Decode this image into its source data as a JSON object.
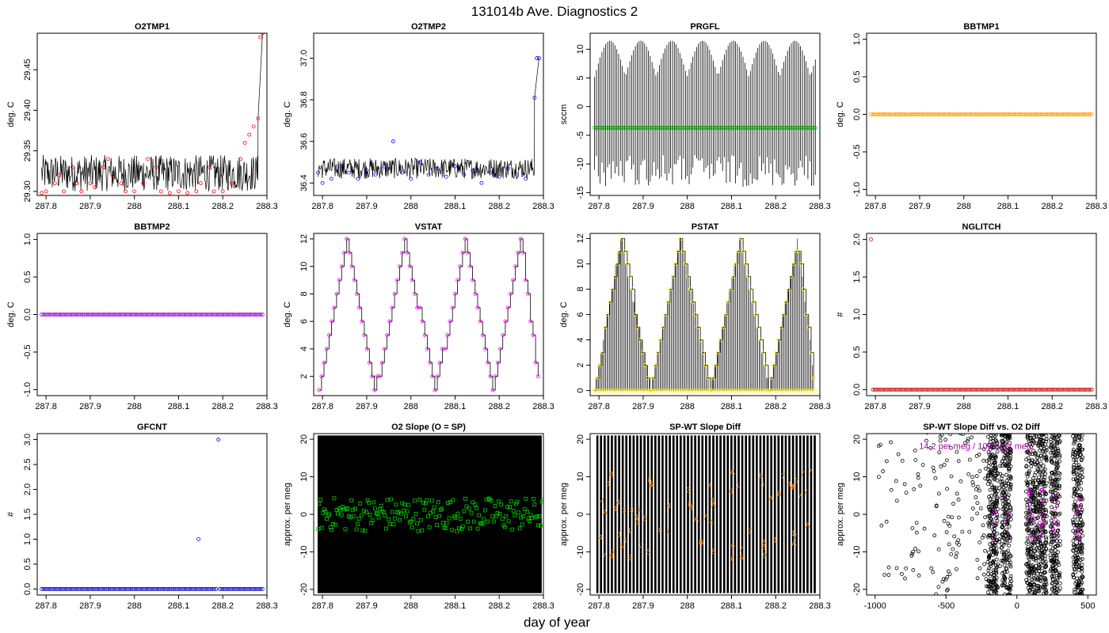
{
  "title": "131014b   Ave. Diagnostics 2",
  "xlabel_bottom": "day of year",
  "chart_data": [
    {
      "id": "o2tmp1",
      "type": "line",
      "title": "O2TMP1",
      "ylabel": "deg. C",
      "xlim": [
        287.78,
        288.3
      ],
      "ylim": [
        29.295,
        29.495
      ],
      "xticks": [
        287.8,
        287.9,
        288.0,
        288.1,
        288.2,
        288.3
      ],
      "yticks": [
        29.3,
        29.35,
        29.4,
        29.45
      ],
      "ytick_labels": [
        "29.30",
        "29.35",
        "29.40",
        "29.45"
      ],
      "marker_color": "#ff0000",
      "line_color": "#000000",
      "line_band": [
        29.3,
        29.345
      ],
      "points": [
        [
          287.79,
          29.298
        ],
        [
          287.8,
          29.3
        ],
        [
          287.82,
          29.31
        ],
        [
          287.83,
          29.32
        ],
        [
          287.84,
          29.3
        ],
        [
          287.86,
          29.33
        ],
        [
          287.87,
          29.31
        ],
        [
          287.88,
          29.3
        ],
        [
          287.9,
          29.31
        ],
        [
          287.91,
          29.305
        ],
        [
          287.93,
          29.33
        ],
        [
          287.94,
          29.34
        ],
        [
          287.95,
          29.32
        ],
        [
          287.97,
          29.31
        ],
        [
          287.98,
          29.3
        ],
        [
          288.0,
          29.3
        ],
        [
          288.02,
          29.31
        ],
        [
          288.03,
          29.34
        ],
        [
          288.05,
          29.33
        ],
        [
          288.06,
          29.3
        ],
        [
          288.08,
          29.298
        ],
        [
          288.1,
          29.3
        ],
        [
          288.12,
          29.298
        ],
        [
          288.14,
          29.3
        ],
        [
          288.15,
          29.31
        ],
        [
          288.17,
          29.33
        ],
        [
          288.18,
          29.3
        ],
        [
          288.2,
          29.3
        ],
        [
          288.22,
          29.31
        ],
        [
          288.24,
          29.34
        ],
        [
          288.25,
          29.36
        ],
        [
          288.26,
          29.37
        ],
        [
          288.27,
          29.38
        ],
        [
          288.28,
          29.39
        ],
        [
          288.285,
          29.49
        ],
        [
          288.29,
          29.495
        ]
      ]
    },
    {
      "id": "o2tmp2",
      "type": "line",
      "title": "O2TMP2",
      "ylabel": "deg. C",
      "xlim": [
        287.78,
        288.3
      ],
      "ylim": [
        36.34,
        37.12
      ],
      "xticks": [
        287.8,
        287.9,
        288.0,
        288.1,
        288.2,
        288.3
      ],
      "yticks": [
        36.4,
        36.6,
        36.8,
        37.0
      ],
      "ytick_labels": [
        "36.4",
        "36.6",
        "36.8",
        "37.0"
      ],
      "marker_color": "#0000ff",
      "line_color": "#000000",
      "line_band": [
        36.42,
        36.52
      ],
      "points": [
        [
          287.79,
          36.45
        ],
        [
          287.8,
          36.4
        ],
        [
          287.82,
          36.42
        ],
        [
          287.84,
          36.48
        ],
        [
          287.86,
          36.45
        ],
        [
          287.88,
          36.42
        ],
        [
          287.9,
          36.46
        ],
        [
          287.92,
          36.44
        ],
        [
          287.94,
          36.48
        ],
        [
          287.96,
          36.6
        ],
        [
          287.98,
          36.45
        ],
        [
          288.0,
          36.42
        ],
        [
          288.02,
          36.5
        ],
        [
          288.04,
          36.44
        ],
        [
          288.06,
          36.47
        ],
        [
          288.08,
          36.43
        ],
        [
          288.1,
          36.48
        ],
        [
          288.12,
          36.44
        ],
        [
          288.14,
          36.46
        ],
        [
          288.16,
          36.4
        ],
        [
          288.18,
          36.45
        ],
        [
          288.2,
          36.43
        ],
        [
          288.22,
          36.47
        ],
        [
          288.24,
          36.44
        ],
        [
          288.26,
          36.42
        ],
        [
          288.28,
          36.81
        ],
        [
          288.285,
          37.0
        ],
        [
          288.29,
          37.0
        ]
      ]
    },
    {
      "id": "prgfl",
      "type": "line",
      "title": "PRGFL",
      "ylabel": "sccm",
      "xlim": [
        287.78,
        288.3
      ],
      "ylim": [
        -15.5,
        12.8
      ],
      "xticks": [
        287.8,
        287.9,
        288.0,
        288.1,
        288.2,
        288.3
      ],
      "yticks": [
        -15,
        -10,
        -5,
        0,
        5,
        10
      ],
      "ytick_labels": [
        "-15",
        "-10",
        "-5",
        "0",
        "5",
        "10"
      ],
      "marker_color": "#00aa00",
      "line_color": "#000000",
      "mean_value": -3.7,
      "spike_range": [
        -14,
        11.5
      ]
    },
    {
      "id": "bbtmp1",
      "type": "line",
      "title": "BBTMP1",
      "ylabel": "deg. C",
      "xlim": [
        287.78,
        288.3
      ],
      "ylim": [
        -1.08,
        1.08
      ],
      "xticks": [
        287.8,
        287.9,
        288.0,
        288.1,
        288.2,
        288.3
      ],
      "yticks": [
        -1.0,
        -0.5,
        0.0,
        0.5,
        1.0
      ],
      "ytick_labels": [
        "-1.0",
        "-0.5",
        "0.0",
        "0.5",
        "1.0"
      ],
      "marker_color": "#ff9900",
      "constant_value": 0.0
    },
    {
      "id": "bbtmp2",
      "type": "line",
      "title": "BBTMP2",
      "ylabel": "deg. C",
      "xlim": [
        287.78,
        288.3
      ],
      "ylim": [
        -1.08,
        1.08
      ],
      "xticks": [
        287.8,
        287.9,
        288.0,
        288.1,
        288.2,
        288.3
      ],
      "yticks": [
        -1.0,
        -0.5,
        0.0,
        0.5,
        1.0
      ],
      "ytick_labels": [
        "-1.0",
        "-0.5",
        "0.0",
        "0.5",
        "1.0"
      ],
      "marker_color": "#9900cc",
      "constant_value": 0.0
    },
    {
      "id": "vstat",
      "type": "line",
      "title": "VSTAT",
      "ylabel": "deg. C",
      "xlim": [
        287.78,
        288.3
      ],
      "ylim": [
        0.6,
        12.4
      ],
      "xticks": [
        287.8,
        287.9,
        288.0,
        288.1,
        288.2,
        288.3
      ],
      "yticks": [
        2,
        4,
        6,
        8,
        10,
        12
      ],
      "ytick_labels": [
        "2",
        "4",
        "6",
        "8",
        "10",
        "12"
      ],
      "marker_color": "#ff00ff",
      "line_color": "#000000",
      "cycle_peaks": [
        287.855,
        287.985,
        288.125,
        288.25
      ],
      "cycle_lows": [
        287.792,
        287.92,
        288.055,
        288.188,
        288.29
      ],
      "range": [
        1,
        12
      ]
    },
    {
      "id": "pstat",
      "type": "line",
      "title": "PSTAT",
      "ylabel": "deg. C",
      "xlim": [
        287.78,
        288.3
      ],
      "ylim": [
        -0.4,
        12.4
      ],
      "xticks": [
        287.8,
        287.9,
        288.0,
        288.1,
        288.2,
        288.3
      ],
      "yticks": [
        0,
        2,
        4,
        6,
        8,
        10,
        12
      ],
      "ytick_labels": [
        "0",
        "2",
        "4",
        "6",
        "8",
        "10",
        "12"
      ],
      "marker_color": "#ffee00",
      "line_color": "#000000",
      "cycle_peaks": [
        287.85,
        287.985,
        288.12,
        288.25
      ],
      "cycle_lows": [
        287.79,
        287.918,
        288.052,
        288.186,
        288.29
      ],
      "range": [
        0,
        12
      ]
    },
    {
      "id": "nglitch",
      "type": "scatter",
      "title": "NGLITCH",
      "ylabel": "#",
      "xlim": [
        287.78,
        288.3
      ],
      "ylim": [
        -0.08,
        2.08
      ],
      "xticks": [
        287.8,
        287.9,
        288.0,
        288.1,
        288.2,
        288.3
      ],
      "yticks": [
        0.0,
        0.5,
        1.0,
        1.5,
        2.0
      ],
      "ytick_labels": [
        "0.0",
        "0.5",
        "1.0",
        "1.5",
        "2.0"
      ],
      "marker_color": "#cc0000",
      "constant_value": 0,
      "outliers": [
        [
          287.79,
          2
        ]
      ]
    },
    {
      "id": "gfcnt",
      "type": "scatter",
      "title": "GFCNT",
      "ylabel": "#",
      "xlim": [
        287.78,
        288.3
      ],
      "ylim": [
        -0.12,
        3.12
      ],
      "xticks": [
        287.8,
        287.9,
        288.0,
        288.1,
        288.2,
        288.3
      ],
      "yticks": [
        0.0,
        0.5,
        1.0,
        1.5,
        2.0,
        2.5,
        3.0
      ],
      "ytick_labels": [
        "0.0",
        "0.5",
        "1.0",
        "1.5",
        "2.0",
        "2.5",
        "3.0"
      ],
      "marker_color": "#0000cc",
      "constant_value": 0,
      "outliers": [
        [
          288.145,
          1
        ],
        [
          288.19,
          3
        ]
      ]
    },
    {
      "id": "o2slope",
      "type": "scatter",
      "title": "O2 Slope (O = SP)",
      "ylabel": "approx. per meg",
      "xlim": [
        287.78,
        288.3
      ],
      "ylim": [
        -21.5,
        21.5
      ],
      "xticks": [
        287.8,
        287.9,
        288.0,
        288.1,
        288.2,
        288.3
      ],
      "yticks": [
        -20,
        -10,
        0,
        10,
        20
      ],
      "ytick_labels": [
        "-20",
        "-10",
        "0",
        "10",
        "20"
      ],
      "marker_color": "#00cc00",
      "marker_shape": "square",
      "marker_center": 0,
      "marker_spread": 4.5
    },
    {
      "id": "spwtdiff",
      "type": "scatter",
      "title": "SP-WT Slope Diff",
      "ylabel": "approx. per meg",
      "xlim": [
        287.78,
        288.3
      ],
      "ylim": [
        -21.5,
        21.5
      ],
      "xticks": [
        287.8,
        287.9,
        288.0,
        288.1,
        288.2,
        288.3
      ],
      "yticks": [
        -20,
        -10,
        0,
        10,
        20
      ],
      "ytick_labels": [
        "-20",
        "-10",
        "0",
        "10",
        "20"
      ],
      "marker_color": "#ff8800",
      "marker_glyphs": [
        "8",
        "3",
        "A",
        "4",
        "6",
        "5",
        "7",
        "9",
        "1"
      ]
    },
    {
      "id": "spwt_vs_o2",
      "type": "scatter",
      "title": "SP-WT Slope Diff vs. O2 Diff",
      "ylabel": "approx. per meg",
      "xlim": [
        -1060,
        560
      ],
      "ylim": [
        -21.5,
        21.5
      ],
      "xticks": [
        -1000,
        -500,
        0,
        500
      ],
      "xtick_labels": [
        "-1000",
        "-500",
        "0",
        "500"
      ],
      "yticks": [
        -20,
        -10,
        0,
        10,
        20
      ],
      "ytick_labels": [
        "-20",
        "-10",
        "0",
        "10",
        "20"
      ],
      "marker_color": "#000000",
      "highlight_color": "#aa00aa",
      "annotation": "14.2 per meg / 1000 per meg",
      "dense_columns": [
        -170,
        -75,
        100,
        175,
        270,
        430
      ]
    }
  ]
}
